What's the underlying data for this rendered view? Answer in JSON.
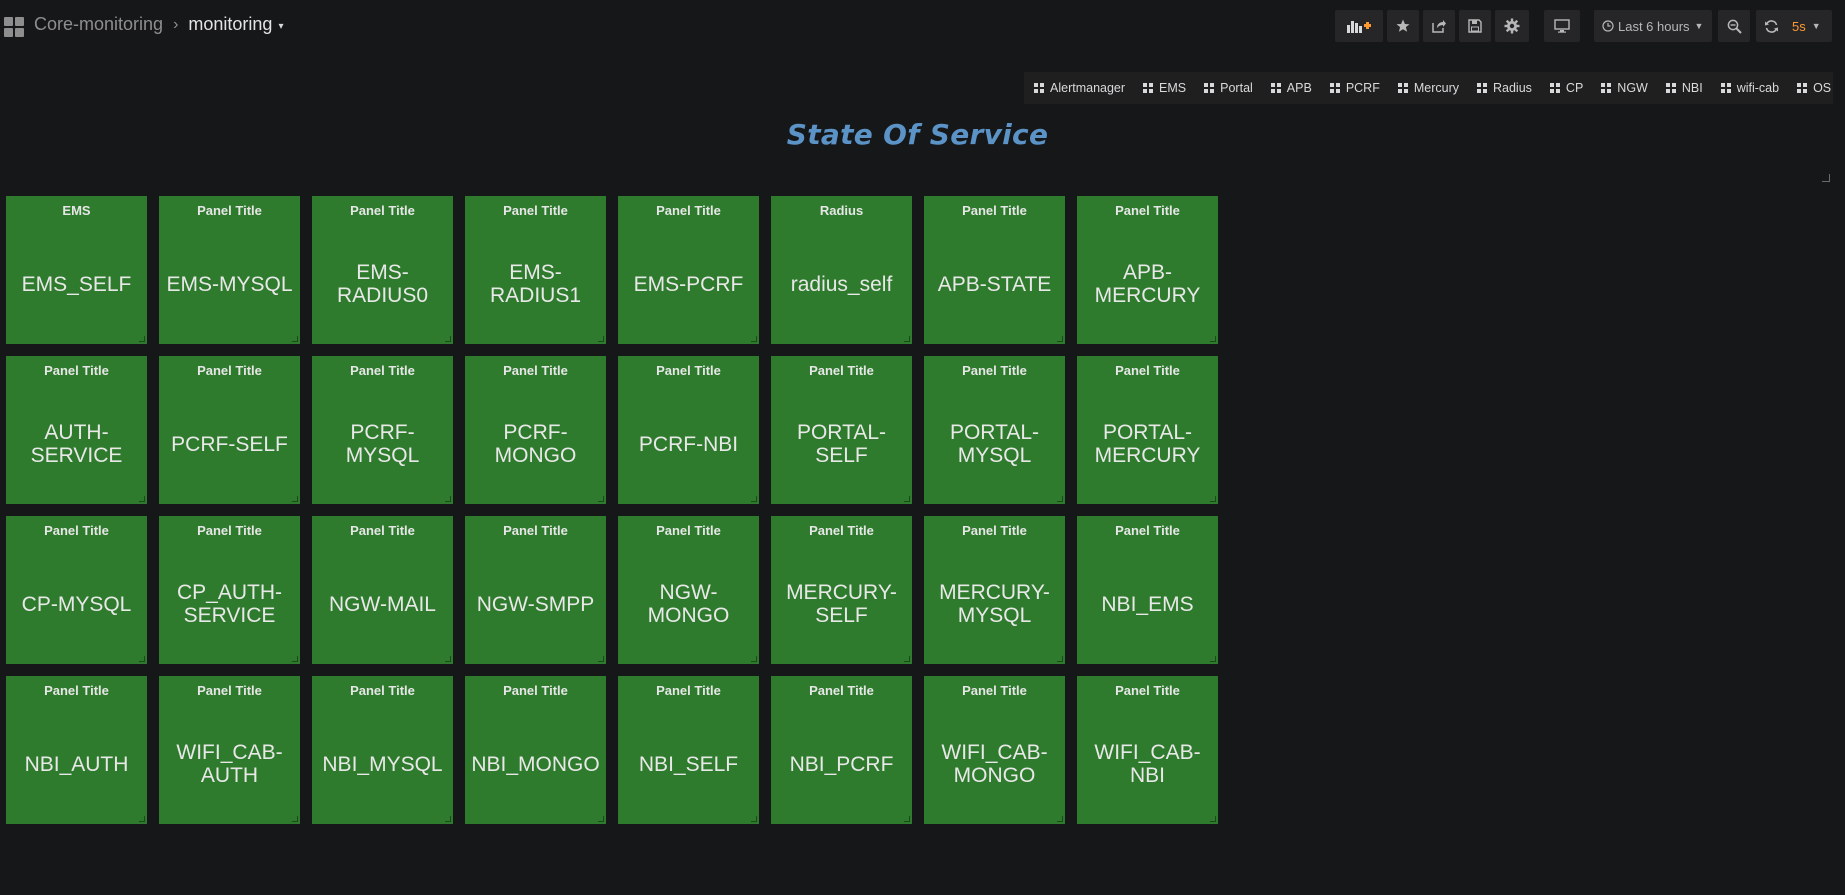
{
  "breadcrumb": {
    "folder": "Core-monitoring",
    "separator": "›",
    "title": "monitoring",
    "caret": "▾"
  },
  "toolbar": {
    "time_range": "Last 6 hours",
    "refresh_interval": "5s",
    "refresh_color": "#ff9830"
  },
  "dashboard_links": [
    {
      "label": "Alertmanager"
    },
    {
      "label": "EMS"
    },
    {
      "label": "Portal"
    },
    {
      "label": "APB"
    },
    {
      "label": "PCRF"
    },
    {
      "label": "Mercury"
    },
    {
      "label": "Radius"
    },
    {
      "label": "CP"
    },
    {
      "label": "NGW"
    },
    {
      "label": "NBI"
    },
    {
      "label": "wifi-cab"
    },
    {
      "label": "OS"
    }
  ],
  "page_title": "State Of Service",
  "colors": {
    "background": "#161719",
    "panel_ok": "#2f7b2d",
    "title_blue": "#5b93c6"
  },
  "panels": [
    {
      "title": "EMS",
      "value": "EMS_SELF"
    },
    {
      "title": "Panel Title",
      "value": "EMS-MYSQL"
    },
    {
      "title": "Panel Title",
      "value": "EMS-RADIUS0"
    },
    {
      "title": "Panel Title",
      "value": "EMS-RADIUS1"
    },
    {
      "title": "Panel Title",
      "value": "EMS-PCRF"
    },
    {
      "title": "Radius",
      "value": "radius_self"
    },
    {
      "title": "Panel Title",
      "value": "APB-STATE"
    },
    {
      "title": "Panel Title",
      "value": "APB-MERCURY"
    },
    {
      "title": "Panel Title",
      "value": "AUTH-SERVICE"
    },
    {
      "title": "Panel Title",
      "value": "PCRF-SELF"
    },
    {
      "title": "Panel Title",
      "value": "PCRF-MYSQL"
    },
    {
      "title": "Panel Title",
      "value": "PCRF-MONGO"
    },
    {
      "title": "Panel Title",
      "value": "PCRF-NBI"
    },
    {
      "title": "Panel Title",
      "value": "PORTAL-SELF"
    },
    {
      "title": "Panel Title",
      "value": "PORTAL-MYSQL"
    },
    {
      "title": "Panel Title",
      "value": "PORTAL-MERCURY"
    },
    {
      "title": "Panel Title",
      "value": "CP-MYSQL"
    },
    {
      "title": "Panel Title",
      "value": "CP_AUTH-SERVICE"
    },
    {
      "title": "Panel Title",
      "value": "NGW-MAIL"
    },
    {
      "title": "Panel Title",
      "value": "NGW-SMPP"
    },
    {
      "title": "Panel Title",
      "value": "NGW-MONGO"
    },
    {
      "title": "Panel Title",
      "value": "MERCURY-SELF"
    },
    {
      "title": "Panel Title",
      "value": "MERCURY-MYSQL"
    },
    {
      "title": "Panel Title",
      "value": "NBI_EMS"
    },
    {
      "title": "Panel Title",
      "value": "NBI_AUTH"
    },
    {
      "title": "Panel Title",
      "value": "WIFI_CAB-AUTH"
    },
    {
      "title": "Panel Title",
      "value": "NBI_MYSQL"
    },
    {
      "title": "Panel Title",
      "value": "NBI_MONGO"
    },
    {
      "title": "Panel Title",
      "value": "NBI_SELF"
    },
    {
      "title": "Panel Title",
      "value": "NBI_PCRF"
    },
    {
      "title": "Panel Title",
      "value": "WIFI_CAB-MONGO"
    },
    {
      "title": "Panel Title",
      "value": "WIFI_CAB-NBI"
    }
  ]
}
